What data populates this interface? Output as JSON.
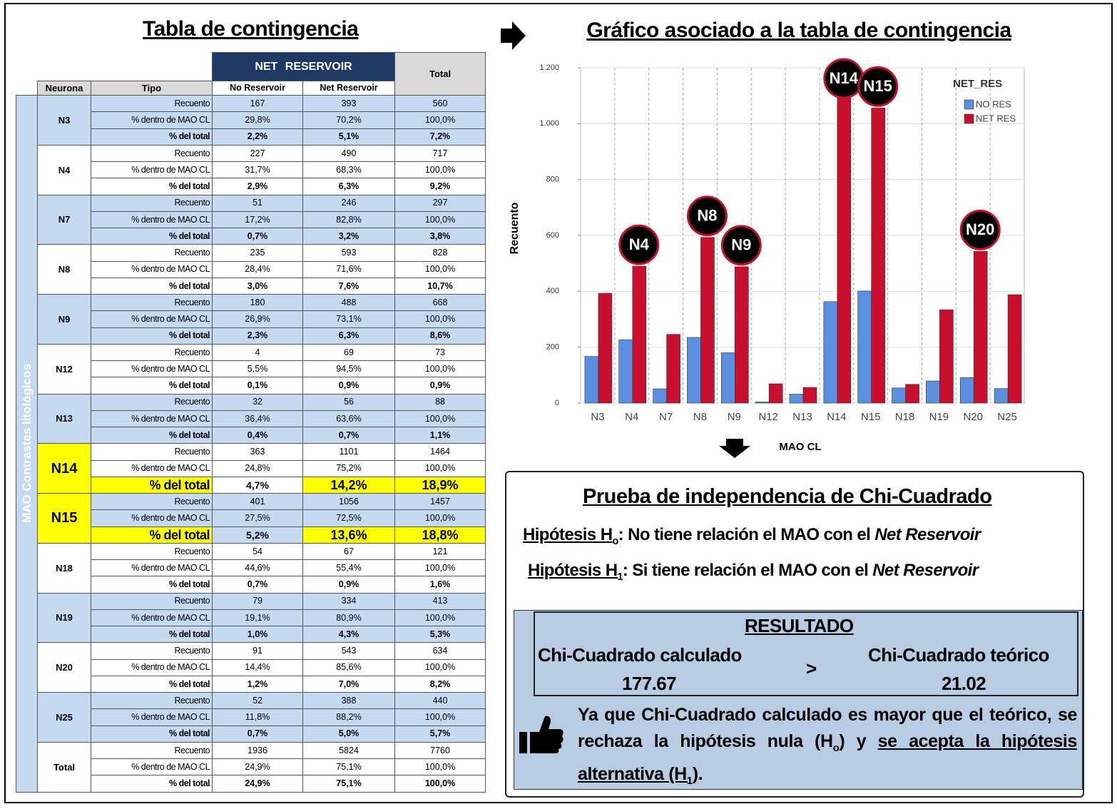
{
  "table": {
    "title": "Tabla de contingencia",
    "group_header": "NET RESERVOIR",
    "total_header": "Total",
    "columns": [
      "Neurona",
      "Tipo",
      "No Reservoir",
      "Net Reservoir"
    ],
    "side_label": "MAO Contrastes litológicos",
    "groups": [
      {
        "neurona": "N3",
        "rows": [
          [
            "Recuento",
            "167",
            "393",
            "560"
          ],
          [
            "% dentro de MAO CL",
            "29,8%",
            "70,2%",
            "100,0%"
          ],
          [
            "% del total",
            "2,2%",
            "5,1%",
            "7,2%"
          ]
        ]
      },
      {
        "neurona": "N4",
        "rows": [
          [
            "Recuento",
            "227",
            "490",
            "717"
          ],
          [
            "% dentro de MAO CL",
            "31,7%",
            "68,3%",
            "100,0%"
          ],
          [
            "% del total",
            "2,9%",
            "6,3%",
            "9,2%"
          ]
        ]
      },
      {
        "neurona": "N7",
        "rows": [
          [
            "Recuento",
            "51",
            "246",
            "297"
          ],
          [
            "% dentro de MAO CL",
            "17,2%",
            "82,8%",
            "100,0%"
          ],
          [
            "% del total",
            "0,7%",
            "3,2%",
            "3,8%"
          ]
        ]
      },
      {
        "neurona": "N8",
        "rows": [
          [
            "Recuento",
            "235",
            "593",
            "828"
          ],
          [
            "% dentro de MAO CL",
            "28,4%",
            "71,6%",
            "100,0%"
          ],
          [
            "% del total",
            "3,0%",
            "7,6%",
            "10,7%"
          ]
        ]
      },
      {
        "neurona": "N9",
        "rows": [
          [
            "Recuento",
            "180",
            "488",
            "668"
          ],
          [
            "% dentro de MAO CL",
            "26,9%",
            "73,1%",
            "100,0%"
          ],
          [
            "% del total",
            "2,3%",
            "6,3%",
            "8,6%"
          ]
        ]
      },
      {
        "neurona": "N12",
        "rows": [
          [
            "Recuento",
            "4",
            "69",
            "73"
          ],
          [
            "% dentro de MAO CL",
            "5,5%",
            "94,5%",
            "100,0%"
          ],
          [
            "% del total",
            "0,1%",
            "0,9%",
            "0,9%"
          ]
        ]
      },
      {
        "neurona": "N13",
        "rows": [
          [
            "Recuento",
            "32",
            "56",
            "88"
          ],
          [
            "% dentro de MAO CL",
            "36,4%",
            "63,6%",
            "100,0%"
          ],
          [
            "% del total",
            "0,4%",
            "0,7%",
            "1,1%"
          ]
        ]
      },
      {
        "neurona": "N14",
        "highlight": true,
        "rows": [
          [
            "Recuento",
            "363",
            "1101",
            "1464"
          ],
          [
            "% dentro de MAO CL",
            "24,8%",
            "75,2%",
            "100,0%"
          ],
          [
            "% del total",
            "4,7%",
            "14,2%",
            "18,9%"
          ]
        ]
      },
      {
        "neurona": "N15",
        "highlight": true,
        "rows": [
          [
            "Recuento",
            "401",
            "1056",
            "1457"
          ],
          [
            "% dentro de MAO CL",
            "27,5%",
            "72,5%",
            "100,0%"
          ],
          [
            "% del total",
            "5,2%",
            "13,6%",
            "18,8%"
          ]
        ]
      },
      {
        "neurona": "N18",
        "rows": [
          [
            "Recuento",
            "54",
            "67",
            "121"
          ],
          [
            "% dentro de MAO CL",
            "44,6%",
            "55,4%",
            "100,0%"
          ],
          [
            "% del total",
            "0,7%",
            "0,9%",
            "1,6%"
          ]
        ]
      },
      {
        "neurona": "N19",
        "rows": [
          [
            "Recuento",
            "79",
            "334",
            "413"
          ],
          [
            "% dentro de MAO CL",
            "19,1%",
            "80,9%",
            "100,0%"
          ],
          [
            "% del total",
            "1,0%",
            "4,3%",
            "5,3%"
          ]
        ]
      },
      {
        "neurona": "N20",
        "rows": [
          [
            "Recuento",
            "91",
            "543",
            "634"
          ],
          [
            "% dentro de MAO CL",
            "14,4%",
            "85,6%",
            "100,0%"
          ],
          [
            "% del total",
            "1,2%",
            "7,0%",
            "8,2%"
          ]
        ]
      },
      {
        "neurona": "N25",
        "rows": [
          [
            "Recuento",
            "52",
            "388",
            "440"
          ],
          [
            "% dentro de MAO CL",
            "11,8%",
            "88,2%",
            "100,0%"
          ],
          [
            "% del total",
            "0,7%",
            "5,0%",
            "5,7%"
          ]
        ]
      },
      {
        "neurona": "Total",
        "rows": [
          [
            "Recuento",
            "1936",
            "5824",
            "7760"
          ],
          [
            "% dentro de MAO CL",
            "24,9%",
            "75,1%",
            "100,0%"
          ],
          [
            "% del total",
            "24,9%",
            "75,1%",
            "100,0%"
          ]
        ]
      }
    ]
  },
  "chart_data": {
    "type": "bar",
    "title": "Gráfico asociado a la tabla de contingencia",
    "y_label": "Recuento",
    "x_label": "MAO CL",
    "legend_title": "NET_RES",
    "legend": "upper right",
    "grid": true,
    "categories": [
      "N3",
      "N4",
      "N7",
      "N8",
      "N9",
      "N12",
      "N13",
      "N14",
      "N15",
      "N18",
      "N19",
      "N20",
      "N25"
    ],
    "series": [
      {
        "name": "NO RES",
        "color": "#5b8fe0",
        "values": [
          167,
          227,
          51,
          235,
          180,
          4,
          32,
          363,
          401,
          54,
          79,
          91,
          52
        ]
      },
      {
        "name": "NET RES",
        "color": "#c8102e",
        "values": [
          393,
          490,
          246,
          593,
          488,
          69,
          56,
          1101,
          1056,
          67,
          334,
          543,
          388
        ]
      }
    ],
    "ylim": [
      0,
      1200
    ],
    "yticks": [
      0,
      200,
      400,
      600,
      800,
      {
        "value": 1000,
        "label": "1.000"
      },
      {
        "value": 1200,
        "label": "1.200"
      }
    ],
    "annotations": [
      {
        "text": "N4"
      },
      {
        "text": "N8"
      },
      {
        "text": "N9"
      },
      {
        "text": "N14"
      },
      {
        "text": "N15"
      },
      {
        "text": "N20"
      }
    ]
  },
  "test": {
    "title": "Prueba de independencia de Chi-Cuadrado",
    "h0": {
      "label": "Hipótesis H",
      "sub": "o",
      "text": ": No tiene relación el MAO con el ",
      "emph": "Net Reservoir"
    },
    "h1": {
      "label": "Hipótesis H",
      "sub": "1",
      "text": ": Si tiene relación el MAO con el ",
      "emph": "Net Reservoir"
    },
    "result_title": "RESULTADO",
    "calc_label": "Chi-Cuadrado calculado",
    "calc_value": "177.67",
    "comparator": ">",
    "theory_label": "Chi-Cuadrado teórico",
    "theory_value": "21.02",
    "conclusion": {
      "text1": "Ya que Chi-Cuadrado calculado es mayor que el teórico, se rechaza la hipótesis nula (H",
      "sub1": "o",
      "text2": ") y ",
      "underlined": "se acepta la hipótesis alternativa (H",
      "sub2": "1",
      "text3": ")",
      "end": "."
    }
  }
}
